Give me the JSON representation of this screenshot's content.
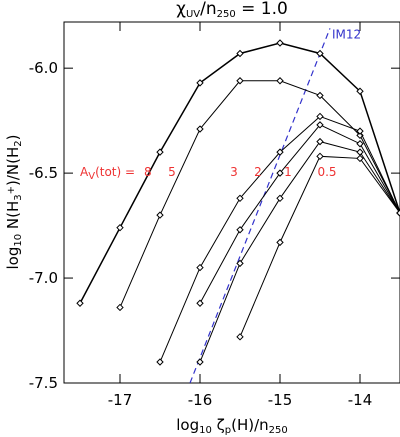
{
  "chart_data": {
    "type": "line",
    "title_parts": [
      "χ",
      "UV",
      "/n",
      "250",
      " =   1.0"
    ],
    "xlabel_parts": [
      "log",
      "10",
      " ζ",
      "p",
      "(H)/n",
      "250"
    ],
    "ylabel_parts": [
      "log",
      "10",
      " N(H",
      "3",
      "+",
      ")/N(H",
      "2",
      ")"
    ],
    "legend_prefix_parts": [
      "A",
      "V",
      "(tot) ="
    ],
    "x": [
      -17.5,
      -17,
      -16.5,
      -16,
      -15.5,
      -15,
      -14.5,
      -14,
      -13.5
    ],
    "series": [
      {
        "name": "8",
        "color": "#000000",
        "values": [
          -7.12,
          -6.76,
          -6.4,
          -6.07,
          -5.93,
          -5.88,
          -5.93,
          -6.11,
          -6.69
        ]
      },
      {
        "name": "5",
        "color": "#000000",
        "values": [
          null,
          -7.14,
          -6.7,
          -6.29,
          -6.06,
          -6.06,
          -6.13,
          -6.32,
          -6.69
        ]
      },
      {
        "name": "3",
        "color": "#000000",
        "values": [
          null,
          null,
          -7.4,
          -6.95,
          -6.62,
          -6.4,
          -6.23,
          -6.3,
          -6.69
        ]
      },
      {
        "name": "2",
        "color": "#000000",
        "values": [
          null,
          null,
          null,
          -7.12,
          -6.77,
          -6.5,
          -6.27,
          -6.36,
          -6.69
        ]
      },
      {
        "name": "1",
        "color": "#000000",
        "values": [
          null,
          null,
          null,
          -7.4,
          -6.93,
          -6.62,
          -6.35,
          -6.4,
          -6.69
        ]
      },
      {
        "name": "0.5",
        "color": "#000000",
        "values": [
          null,
          null,
          null,
          null,
          -7.28,
          -6.83,
          -6.42,
          -6.43,
          -6.69
        ]
      }
    ],
    "label_color": "#ee3333",
    "reference_line": {
      "name": "IM12",
      "color": "#3333cc",
      "x": [
        -16.125,
        -14.375
      ],
      "values": [
        -7.5,
        -5.81
      ]
    },
    "xlim": [
      -17.7,
      -13.5
    ],
    "ylim": [
      -7.5,
      -5.78
    ],
    "xticks": [
      -17,
      -16,
      -15,
      -14
    ],
    "yticks": [
      {
        "value": -7.5,
        "label": "-7.5"
      },
      {
        "value": -7.0,
        "label": "-7.0"
      },
      {
        "value": -6.5,
        "label": "-6.5"
      },
      {
        "value": -6.0,
        "label": "-6.0"
      }
    ]
  }
}
